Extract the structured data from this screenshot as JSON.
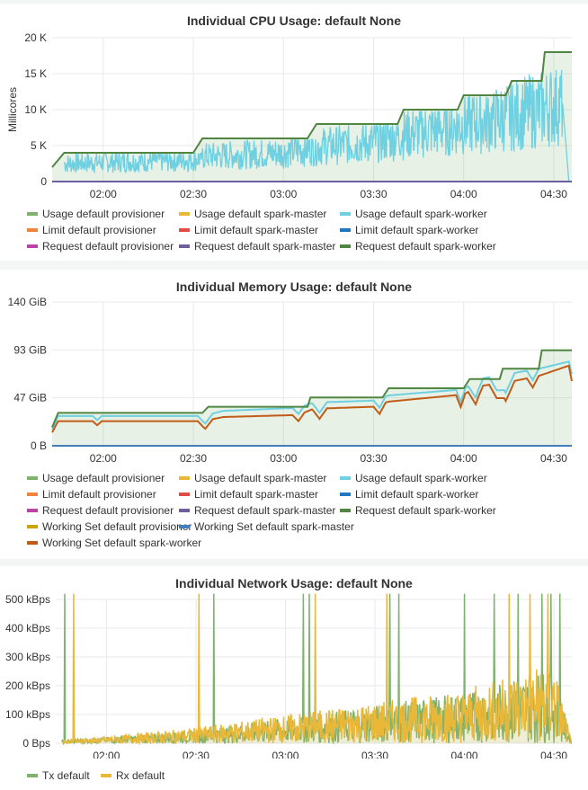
{
  "colors": {
    "green": "#7eb26d",
    "yellow": "#eab839",
    "cyan": "#6ed0e0",
    "orange": "#ef843c",
    "red": "#e24d42",
    "blue": "#1f78c1",
    "magenta": "#ba43a9",
    "purple": "#705da0",
    "darkgreen": "#508642",
    "gold": "#cca300",
    "steelblue": "#447ebc",
    "rust": "#c15c17"
  },
  "panels": {
    "cpu": {
      "title": "Individual CPU Usage: default None",
      "ylabel": "Millicores",
      "yticks": [
        "20 K",
        "15 K",
        "10 K",
        "5 K",
        "0"
      ],
      "xticks": [
        "02:00",
        "02:30",
        "03:00",
        "03:30",
        "04:00",
        "04:30"
      ],
      "legend_rows": [
        [
          "Usage default provisioner",
          "Usage default spark-master",
          "Usage default spark-worker"
        ],
        [
          "Limit default provisioner",
          "Limit default spark-master",
          "Limit default spark-worker"
        ],
        [
          "Request default provisioner",
          "Request default spark-master",
          "Request default spark-worker"
        ]
      ]
    },
    "mem": {
      "title": "Individual Memory Usage: default None",
      "yticks": [
        "140 GiB",
        "93 GiB",
        "47 GiB",
        "0 B"
      ],
      "xticks": [
        "02:00",
        "02:30",
        "03:00",
        "03:30",
        "04:00",
        "04:30"
      ],
      "legend_rows": [
        [
          "Usage default provisioner",
          "Usage default spark-master",
          "Usage default spark-worker"
        ],
        [
          "Limit default provisioner",
          "Limit default spark-master",
          "Limit default spark-worker"
        ],
        [
          "Request default provisioner",
          "Request default spark-master",
          "Request default spark-worker"
        ],
        [
          "Working Set default provisioner",
          "Working Set default spark-master"
        ],
        [
          "Working Set default spark-worker"
        ]
      ]
    },
    "net": {
      "title": "Individual Network Usage: default None",
      "yticks": [
        "500 kBps",
        "400 kBps",
        "300 kBps",
        "200 kBps",
        "100 kBps",
        "0 Bps"
      ],
      "xticks": [
        "02:00",
        "02:30",
        "03:00",
        "03:30",
        "04:00",
        "04:30"
      ],
      "legend_rows": [
        [
          "Tx default",
          "Rx default"
        ]
      ]
    }
  },
  "chart_data": [
    {
      "type": "line",
      "title": "Individual CPU Usage: default None",
      "ylabel": "Millicores",
      "ylim": [
        0,
        20000
      ],
      "x_range": [
        "01:43",
        "04:36"
      ],
      "series": [
        {
          "name": "Request default spark-worker",
          "x": [
            "01:43",
            "01:47",
            "02:30",
            "02:33",
            "03:08",
            "03:11",
            "03:38",
            "03:40",
            "03:58",
            "04:00",
            "04:14",
            "04:16",
            "04:26",
            "04:27",
            "04:36"
          ],
          "values": [
            2000,
            4000,
            4000,
            6000,
            6000,
            8000,
            8000,
            10000,
            10000,
            12000,
            12000,
            14000,
            14000,
            18000,
            18000
          ]
        },
        {
          "name": "Usage default spark-worker",
          "x": [
            "01:47",
            "02:00",
            "02:30",
            "02:33",
            "03:00",
            "03:10",
            "03:30",
            "03:40",
            "04:00",
            "04:15",
            "04:25",
            "04:33",
            "04:35"
          ],
          "values": [
            2500,
            2700,
            3000,
            3500,
            4000,
            4800,
            5500,
            6500,
            8000,
            9000,
            10000,
            11000,
            0
          ]
        },
        {
          "name": "Request default spark-master",
          "x": [
            "01:43",
            "04:36"
          ],
          "values": [
            0,
            0
          ]
        }
      ]
    },
    {
      "type": "line",
      "title": "Individual Memory Usage: default None",
      "ylim": [
        0,
        140
      ],
      "x_range": [
        "01:43",
        "04:36"
      ],
      "series": [
        {
          "name": "Request default spark-worker",
          "x": [
            "01:43",
            "01:45",
            "02:33",
            "02:35",
            "03:08",
            "03:09",
            "03:33",
            "03:35",
            "04:00",
            "04:02",
            "04:12",
            "04:13",
            "04:25",
            "04:26",
            "04:36"
          ],
          "values": [
            18,
            32,
            32,
            38,
            38,
            47,
            47,
            56,
            56,
            65,
            65,
            75,
            75,
            93,
            93
          ]
        },
        {
          "name": "Usage default spark-worker",
          "x": [
            "01:43",
            "01:45",
            "02:33",
            "02:40",
            "03:05",
            "03:10",
            "03:30",
            "03:35",
            "04:00",
            "04:05",
            "04:15",
            "04:25",
            "04:35",
            "04:36"
          ],
          "values": [
            16,
            29,
            29,
            34,
            37,
            42,
            44,
            49,
            55,
            65,
            70,
            75,
            82,
            70
          ]
        },
        {
          "name": "Working Set default spark-worker",
          "x": [
            "01:43",
            "01:45",
            "02:33",
            "02:40",
            "03:05",
            "03:10",
            "03:30",
            "03:35",
            "04:00",
            "04:05",
            "04:15",
            "04:25",
            "04:35",
            "04:36"
          ],
          "values": [
            13,
            24,
            24,
            28,
            30,
            36,
            38,
            43,
            50,
            58,
            62,
            68,
            78,
            63
          ]
        },
        {
          "name": "Request default spark-master",
          "x": [
            "01:43",
            "04:36"
          ],
          "values": [
            0,
            0
          ]
        }
      ]
    },
    {
      "type": "line",
      "title": "Individual Network Usage: default None",
      "ylim": [
        0,
        500
      ],
      "x_range": [
        "01:43",
        "04:36"
      ],
      "series": [
        {
          "name": "Tx default",
          "x": [
            "01:45",
            "02:00",
            "02:30",
            "03:00",
            "03:30",
            "04:00",
            "04:30",
            "04:36"
          ],
          "values": [
            5,
            10,
            20,
            40,
            60,
            80,
            120,
            0
          ]
        },
        {
          "name": "Rx default",
          "x": [
            "01:45",
            "02:00",
            "02:30",
            "03:00",
            "03:30",
            "04:00",
            "04:30",
            "04:36"
          ],
          "values": [
            5,
            10,
            25,
            45,
            65,
            85,
            130,
            0
          ]
        }
      ]
    }
  ]
}
